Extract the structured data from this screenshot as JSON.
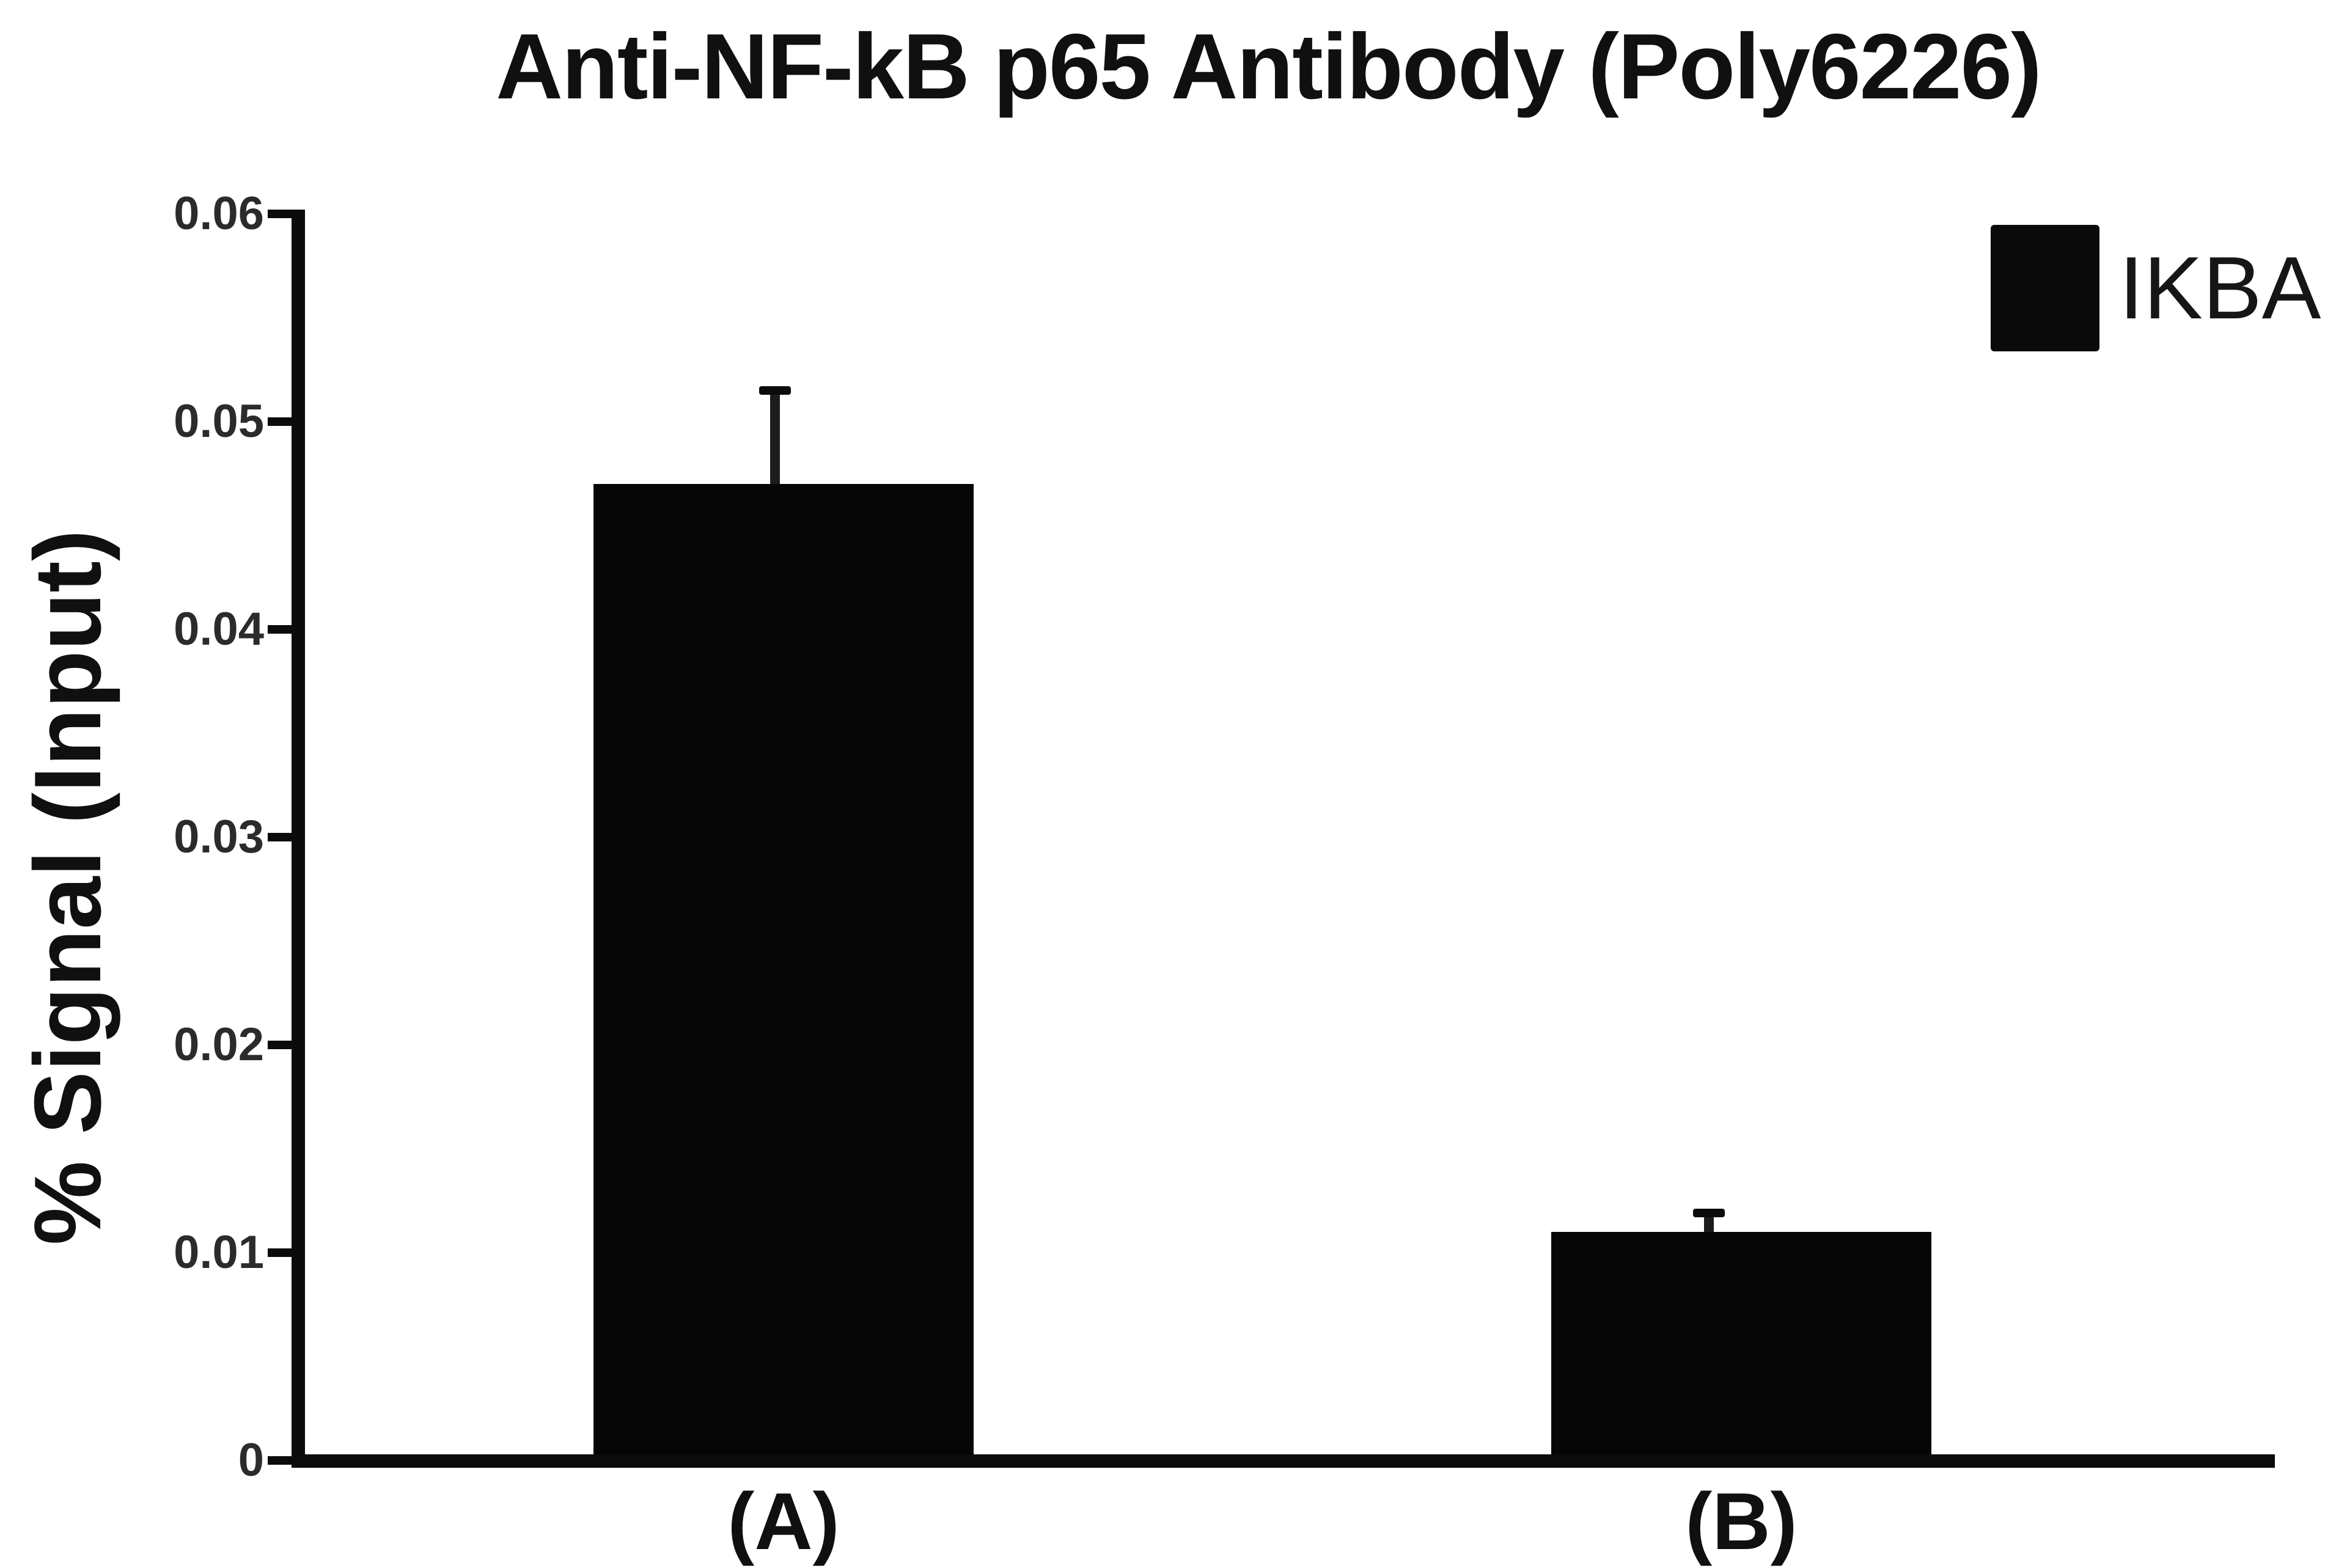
{
  "title": "Anti-NF-kB p65 Antibody (Poly6226)",
  "colors": {
    "background": "#ffffff",
    "bar": "#060606",
    "axis": "#0b0b0b",
    "text": "#101010"
  },
  "chart_data": {
    "type": "bar",
    "title": "Anti-NF-kB p65 Antibody (Poly6226)",
    "xlabel": "",
    "ylabel": "% Signal (Input)",
    "categories": [
      "(A)",
      "(B)"
    ],
    "series": [
      {
        "name": "IKBA",
        "color": "#060606",
        "values": [
          0.047,
          0.011
        ],
        "errors_upper": [
          0.0045,
          0.0009
        ]
      }
    ],
    "ylim": [
      0,
      0.06
    ],
    "grid": false,
    "legend": {
      "position": "top-right",
      "entries": [
        {
          "label": "IKBA",
          "color": "#0a0a0a",
          "marker": "filled-square"
        }
      ]
    },
    "yticks": [
      {
        "value": 0.06,
        "label": "0.06"
      },
      {
        "value": 0.05,
        "label": "0.05"
      },
      {
        "value": 0.04,
        "label": "0.04"
      },
      {
        "value": 0.03,
        "label": "0.03"
      },
      {
        "value": 0.02,
        "label": "0.02"
      },
      {
        "value": 0.01,
        "label": "0.01"
      },
      {
        "value": 0,
        "label": "0"
      }
    ]
  }
}
